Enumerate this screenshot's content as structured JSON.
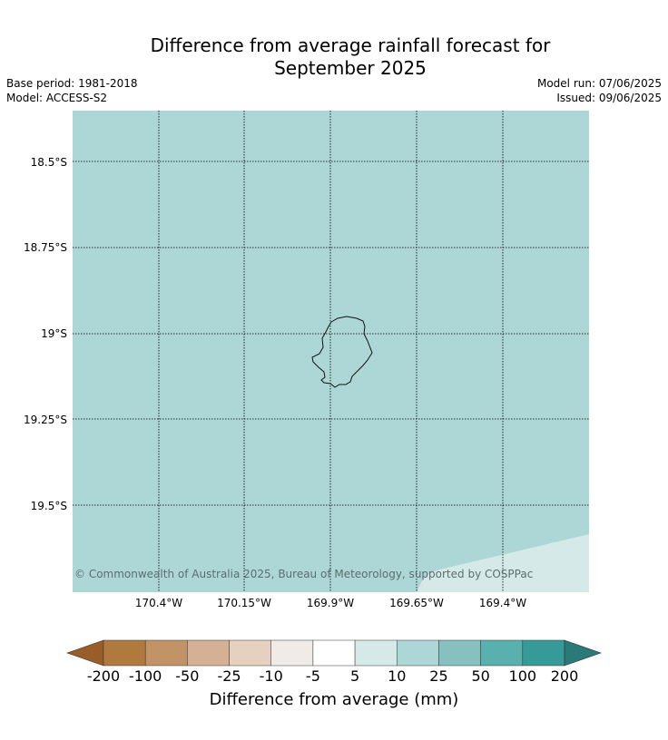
{
  "title_line1": "Difference from average rainfall forecast for",
  "title_line2": "September 2025",
  "meta": {
    "base_period": "Base period: 1981-2018",
    "model": "Model: ACCESS-S2",
    "model_run": "Model run: 07/06/2025",
    "issued": "Issued: 09/06/2025"
  },
  "map": {
    "lat_labels": [
      "18.5°S",
      "18.75°S",
      "19°S",
      "19.25°S",
      "19.5°S"
    ],
    "lon_labels": [
      "170.4°W",
      "170.15°W",
      "169.9°W",
      "169.65°W",
      "169.4°W"
    ],
    "background_color": "#add6d6",
    "lower_right_color": "#d5eae8",
    "copyright": "© Commonwealth of Australia 2025, Bureau of Meteorology, supported by COSPPac"
  },
  "colorbar": {
    "title": "Difference from average (mm)",
    "ticks": [
      "-200",
      "-100",
      "-50",
      "-25",
      "-10",
      "-5",
      "5",
      "10",
      "25",
      "50",
      "100",
      "200"
    ],
    "colors": [
      "#b07a3f",
      "#c19366",
      "#d4b194",
      "#e6d0bf",
      "#f0ebe7",
      "#ffffff",
      "#d5eae8",
      "#add6d6",
      "#86c1bf",
      "#5ab0ae",
      "#369a98"
    ],
    "under_color": "#995d28",
    "over_color": "#2a7a79"
  }
}
